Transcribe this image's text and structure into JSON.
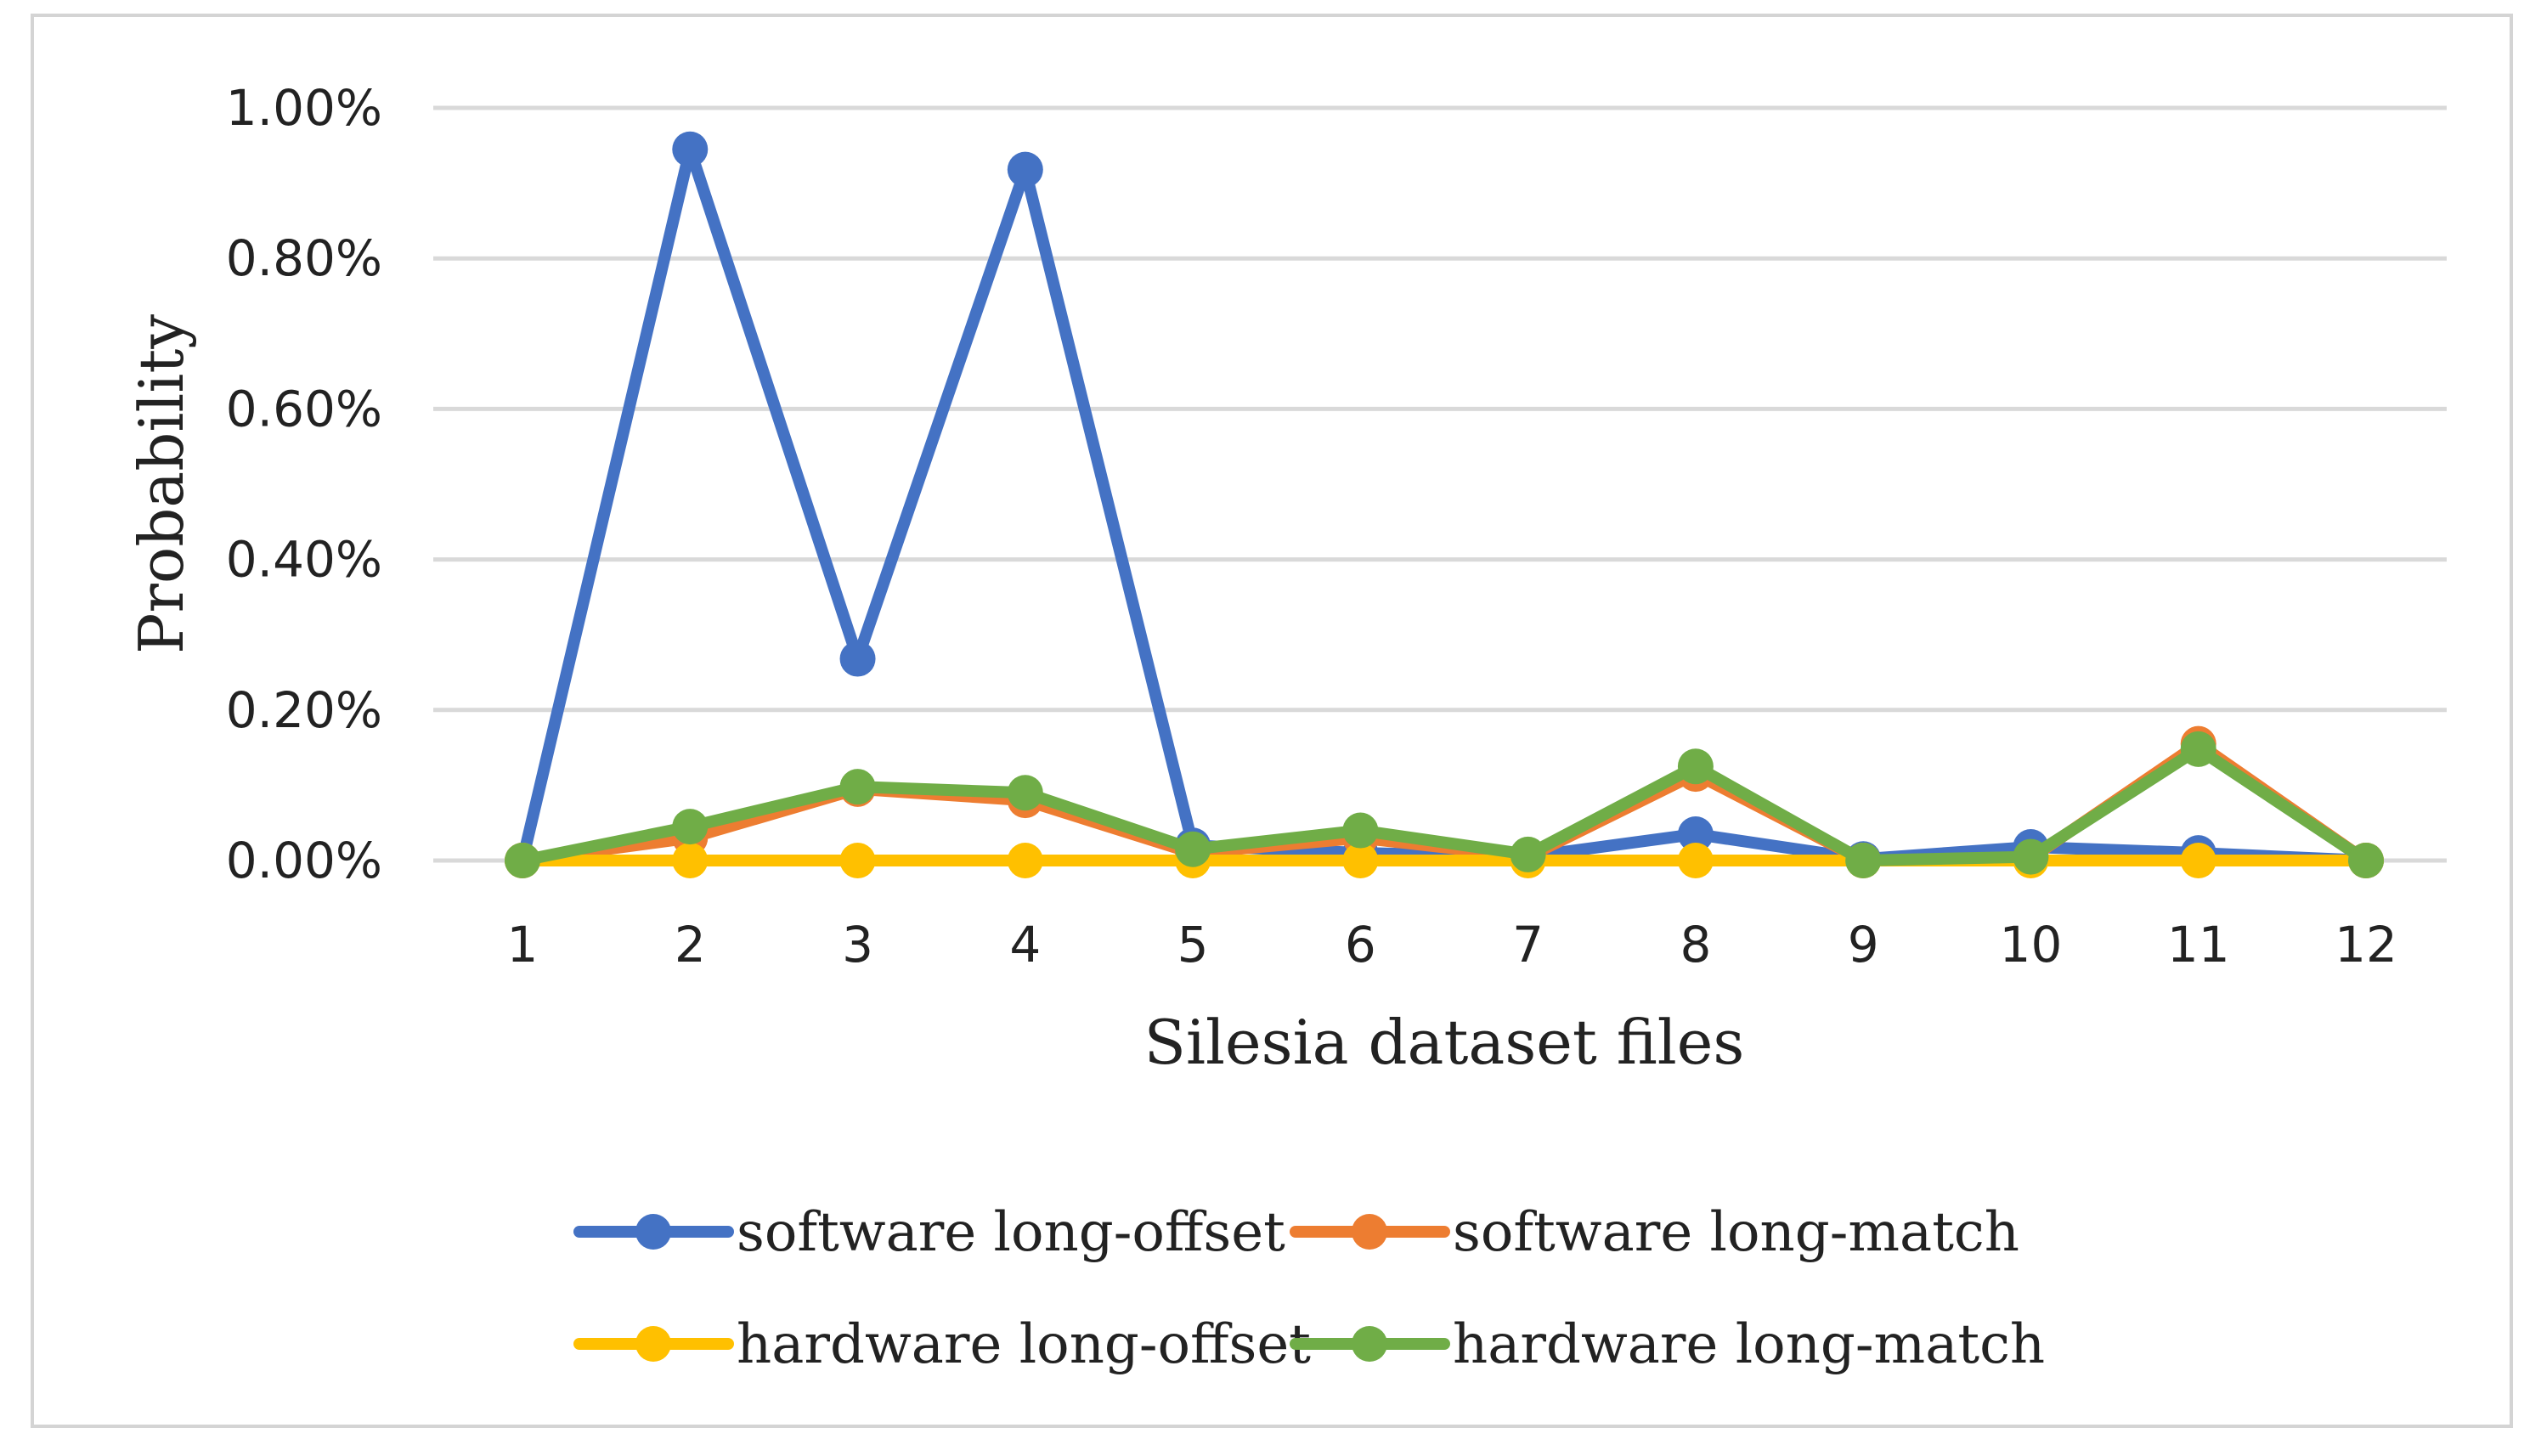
{
  "chart_data": {
    "type": "line",
    "title": "",
    "xlabel": "Silesia dataset files",
    "ylabel": "Probability",
    "x": [
      1,
      2,
      3,
      4,
      5,
      6,
      7,
      8,
      9,
      10,
      11,
      12
    ],
    "x_tick_labels": [
      "1",
      "2",
      "3",
      "4",
      "5",
      "6",
      "7",
      "8",
      "9",
      "10",
      "11",
      "12"
    ],
    "y_ticks": [
      0,
      0.2,
      0.4,
      0.6,
      0.8,
      1.0
    ],
    "y_tick_labels": [
      "0.00%",
      "0.20%",
      "0.40%",
      "0.60%",
      "0.80%",
      "1.00%"
    ],
    "ylim": [
      0,
      1.0
    ],
    "y_unit": "%",
    "grid": "horizontal",
    "legend_position": "bottom",
    "series": [
      {
        "name": "software long-offset",
        "color": "#4472c4",
        "values": [
          0.0,
          0.945,
          0.268,
          0.918,
          0.02,
          0.01,
          0.005,
          0.035,
          0.002,
          0.018,
          0.01,
          0.0
        ]
      },
      {
        "name": "software long-match",
        "color": "#ed7d31",
        "values": [
          0.0,
          0.03,
          0.095,
          0.08,
          0.01,
          0.03,
          0.005,
          0.115,
          0.0,
          0.003,
          0.155,
          0.0
        ]
      },
      {
        "name": "hardware long-offset",
        "color": "#ffc000",
        "values": [
          0.0,
          0.0,
          0.0,
          0.0,
          0.0,
          0.0,
          0.0,
          0.0,
          0.0,
          0.0,
          0.0,
          0.0
        ]
      },
      {
        "name": "hardware long-match",
        "color": "#70ad47",
        "values": [
          0.0,
          0.045,
          0.098,
          0.09,
          0.015,
          0.04,
          0.008,
          0.125,
          0.0,
          0.005,
          0.148,
          0.0
        ]
      }
    ],
    "gridline_color": "#d9d9d9",
    "frame_color": "#d4d4d4"
  }
}
